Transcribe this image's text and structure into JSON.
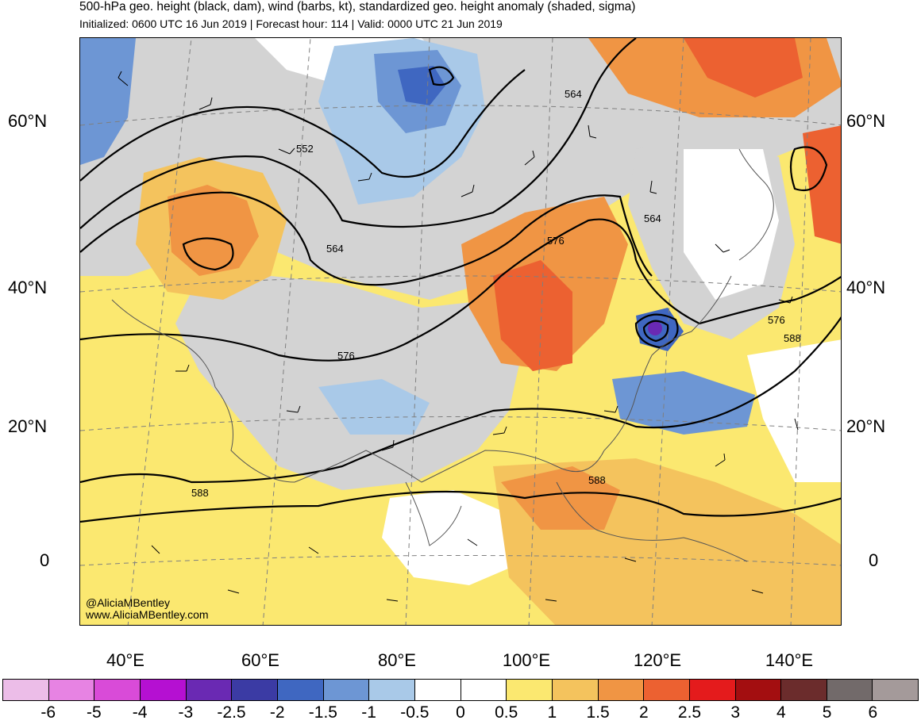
{
  "header": {
    "title": "500-hPa geo. height (black, dam), wind (barbs, kt), standardized geo. height anomaly (shaded, sigma)",
    "subtitle": "Initialized: 0600 UTC 16 Jun 2019 | Forecast hour: 114 | Valid: 0000 UTC 21 Jun 2019"
  },
  "axes": {
    "lat_labels": [
      "60°N",
      "40°N",
      "20°N",
      "0"
    ],
    "lon_labels": [
      "40°E",
      "60°E",
      "80°E",
      "100°E",
      "120°E",
      "140°E"
    ]
  },
  "contour_labels": [
    "552",
    "564",
    "564",
    "564",
    "576",
    "576",
    "576",
    "588",
    "588",
    "588"
  ],
  "credit": {
    "handle": "@AliciaMBentley",
    "website": "www.AliciaMBentley.com"
  },
  "colorbar": {
    "colors": [
      "#ecbde8",
      "#e783e3",
      "#d94bd8",
      "#b510d2",
      "#6a29b3",
      "#3b3ba4",
      "#3f67c1",
      "#6d96d4",
      "#a9c9e8",
      "#ffffff",
      "#ffffff",
      "#fbe870",
      "#f4c35d",
      "#f09544",
      "#ec6131",
      "#e41b1c",
      "#a30e10",
      "#6b2c2c",
      "#726a6a",
      "#a49a9a"
    ],
    "labels": [
      "-6",
      "-5",
      "-4",
      "-3",
      "-2.5",
      "-2",
      "-1.5",
      "-1",
      "-0.5",
      "0",
      "0.5",
      "1",
      "1.5",
      "2",
      "2.5",
      "3",
      "4",
      "5",
      "6"
    ]
  }
}
